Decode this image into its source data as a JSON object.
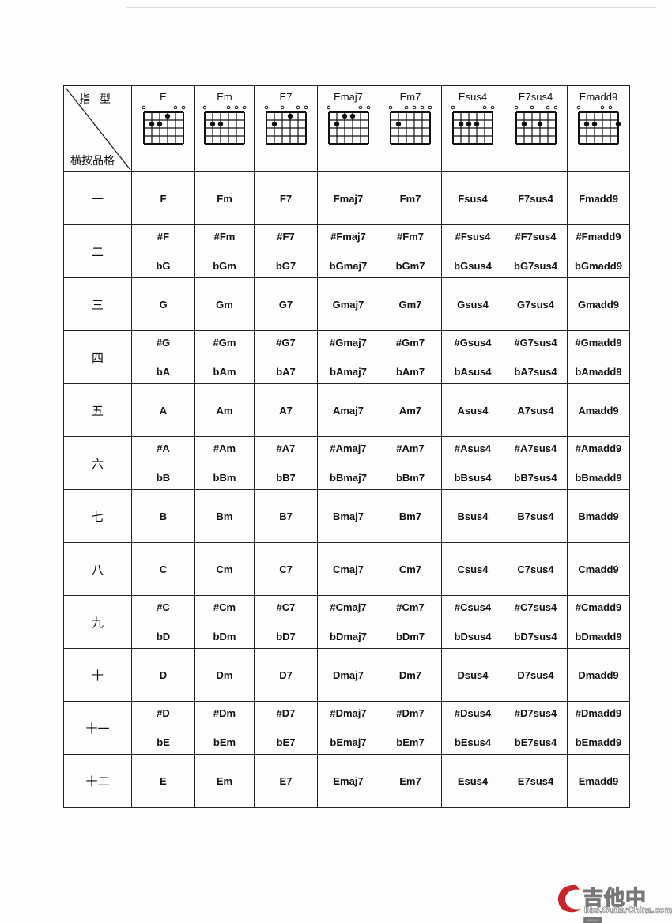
{
  "header": {
    "corner_top": "指 型",
    "corner_bottom": "横按品格"
  },
  "shapes": [
    {
      "name": "E",
      "open": [
        0,
        4,
        5
      ],
      "dots": [
        [
          1,
          2
        ],
        [
          2,
          2
        ],
        [
          3,
          1
        ]
      ]
    },
    {
      "name": "Em",
      "open": [
        0,
        3,
        4,
        5
      ],
      "dots": [
        [
          1,
          2
        ],
        [
          2,
          2
        ]
      ]
    },
    {
      "name": "E7",
      "open": [
        0,
        2,
        4,
        5
      ],
      "dots": [
        [
          1,
          2
        ],
        [
          3,
          1
        ]
      ]
    },
    {
      "name": "Emaj7",
      "open": [
        0,
        4,
        5
      ],
      "dots": [
        [
          1,
          2
        ],
        [
          2,
          1
        ],
        [
          3,
          1
        ]
      ]
    },
    {
      "name": "Em7",
      "open": [
        0,
        2,
        3,
        4,
        5
      ],
      "dots": [
        [
          1,
          2
        ]
      ]
    },
    {
      "name": "Esus4",
      "open": [
        0,
        4,
        5
      ],
      "dots": [
        [
          1,
          2
        ],
        [
          2,
          2
        ],
        [
          3,
          2
        ]
      ]
    },
    {
      "name": "E7sus4",
      "open": [
        0,
        2,
        4,
        5
      ],
      "dots": [
        [
          1,
          2
        ],
        [
          3,
          2
        ]
      ]
    },
    {
      "name": "Emadd9",
      "open": [
        0,
        3,
        4
      ],
      "dots": [
        [
          1,
          2
        ],
        [
          2,
          2
        ],
        [
          5,
          2
        ]
      ]
    }
  ],
  "rows": [
    {
      "fret": "一",
      "chords": [
        "F",
        "Fm",
        "F7",
        "Fmaj7",
        "Fm7",
        "Fsus4",
        "F7sus4",
        "Fmadd9"
      ]
    },
    {
      "fret": "二",
      "sharp": [
        "#F",
        "#Fm",
        "#F7",
        "#Fmaj7",
        "#Fm7",
        "#Fsus4",
        "#F7sus4",
        "#Fmadd9"
      ],
      "flat": [
        "bG",
        "bGm",
        "bG7",
        "bGmaj7",
        "bGm7",
        "bGsus4",
        "bG7sus4",
        "bGmadd9"
      ]
    },
    {
      "fret": "三",
      "chords": [
        "G",
        "Gm",
        "G7",
        "Gmaj7",
        "Gm7",
        "Gsus4",
        "G7sus4",
        "Gmadd9"
      ]
    },
    {
      "fret": "四",
      "sharp": [
        "#G",
        "#Gm",
        "#G7",
        "#Gmaj7",
        "#Gm7",
        "#Gsus4",
        "#G7sus4",
        "#Gmadd9"
      ],
      "flat": [
        "bA",
        "bAm",
        "bA7",
        "bAmaj7",
        "bAm7",
        "bAsus4",
        "bA7sus4",
        "bAmadd9"
      ]
    },
    {
      "fret": "五",
      "chords": [
        "A",
        "Am",
        "A7",
        "Amaj7",
        "Am7",
        "Asus4",
        "A7sus4",
        "Amadd9"
      ]
    },
    {
      "fret": "六",
      "sharp": [
        "#A",
        "#Am",
        "#A7",
        "#Amaj7",
        "#Am7",
        "#Asus4",
        "#A7sus4",
        "#Amadd9"
      ],
      "flat": [
        "bB",
        "bBm",
        "bB7",
        "bBmaj7",
        "bBm7",
        "bBsus4",
        "bB7sus4",
        "bBmadd9"
      ]
    },
    {
      "fret": "七",
      "chords": [
        "B",
        "Bm",
        "B7",
        "Bmaj7",
        "Bm7",
        "Bsus4",
        "B7sus4",
        "Bmadd9"
      ]
    },
    {
      "fret": "八",
      "chords": [
        "C",
        "Cm",
        "C7",
        "Cmaj7",
        "Cm7",
        "Csus4",
        "C7sus4",
        "Cmadd9"
      ]
    },
    {
      "fret": "九",
      "sharp": [
        "#C",
        "#Cm",
        "#C7",
        "#Cmaj7",
        "#Cm7",
        "#Csus4",
        "#C7sus4",
        "#Cmadd9"
      ],
      "flat": [
        "bD",
        "bDm",
        "bD7",
        "bDmaj7",
        "bDm7",
        "bDsus4",
        "bD7sus4",
        "bDmadd9"
      ]
    },
    {
      "fret": "十",
      "chords": [
        "D",
        "Dm",
        "D7",
        "Dmaj7",
        "Dm7",
        "Dsus4",
        "D7sus4",
        "Dmadd9"
      ]
    },
    {
      "fret": "十一",
      "sharp": [
        "#D",
        "#Dm",
        "#D7",
        "#Dmaj7",
        "#Dm7",
        "#Dsus4",
        "#D7sus4",
        "#Dmadd9"
      ],
      "flat": [
        "bE",
        "bEm",
        "bE7",
        "bEmaj7",
        "bEm7",
        "bEsus4",
        "bE7sus4",
        "bEmadd9"
      ]
    },
    {
      "fret": "十二",
      "chords": [
        "E",
        "Em",
        "E7",
        "Emaj7",
        "Em7",
        "Esus4",
        "E7sus4",
        "Emadd9"
      ]
    }
  ],
  "logo": {
    "title": "吉他中国",
    "url": "bbs.GuitarChina.com",
    "color": "#c8262b"
  }
}
